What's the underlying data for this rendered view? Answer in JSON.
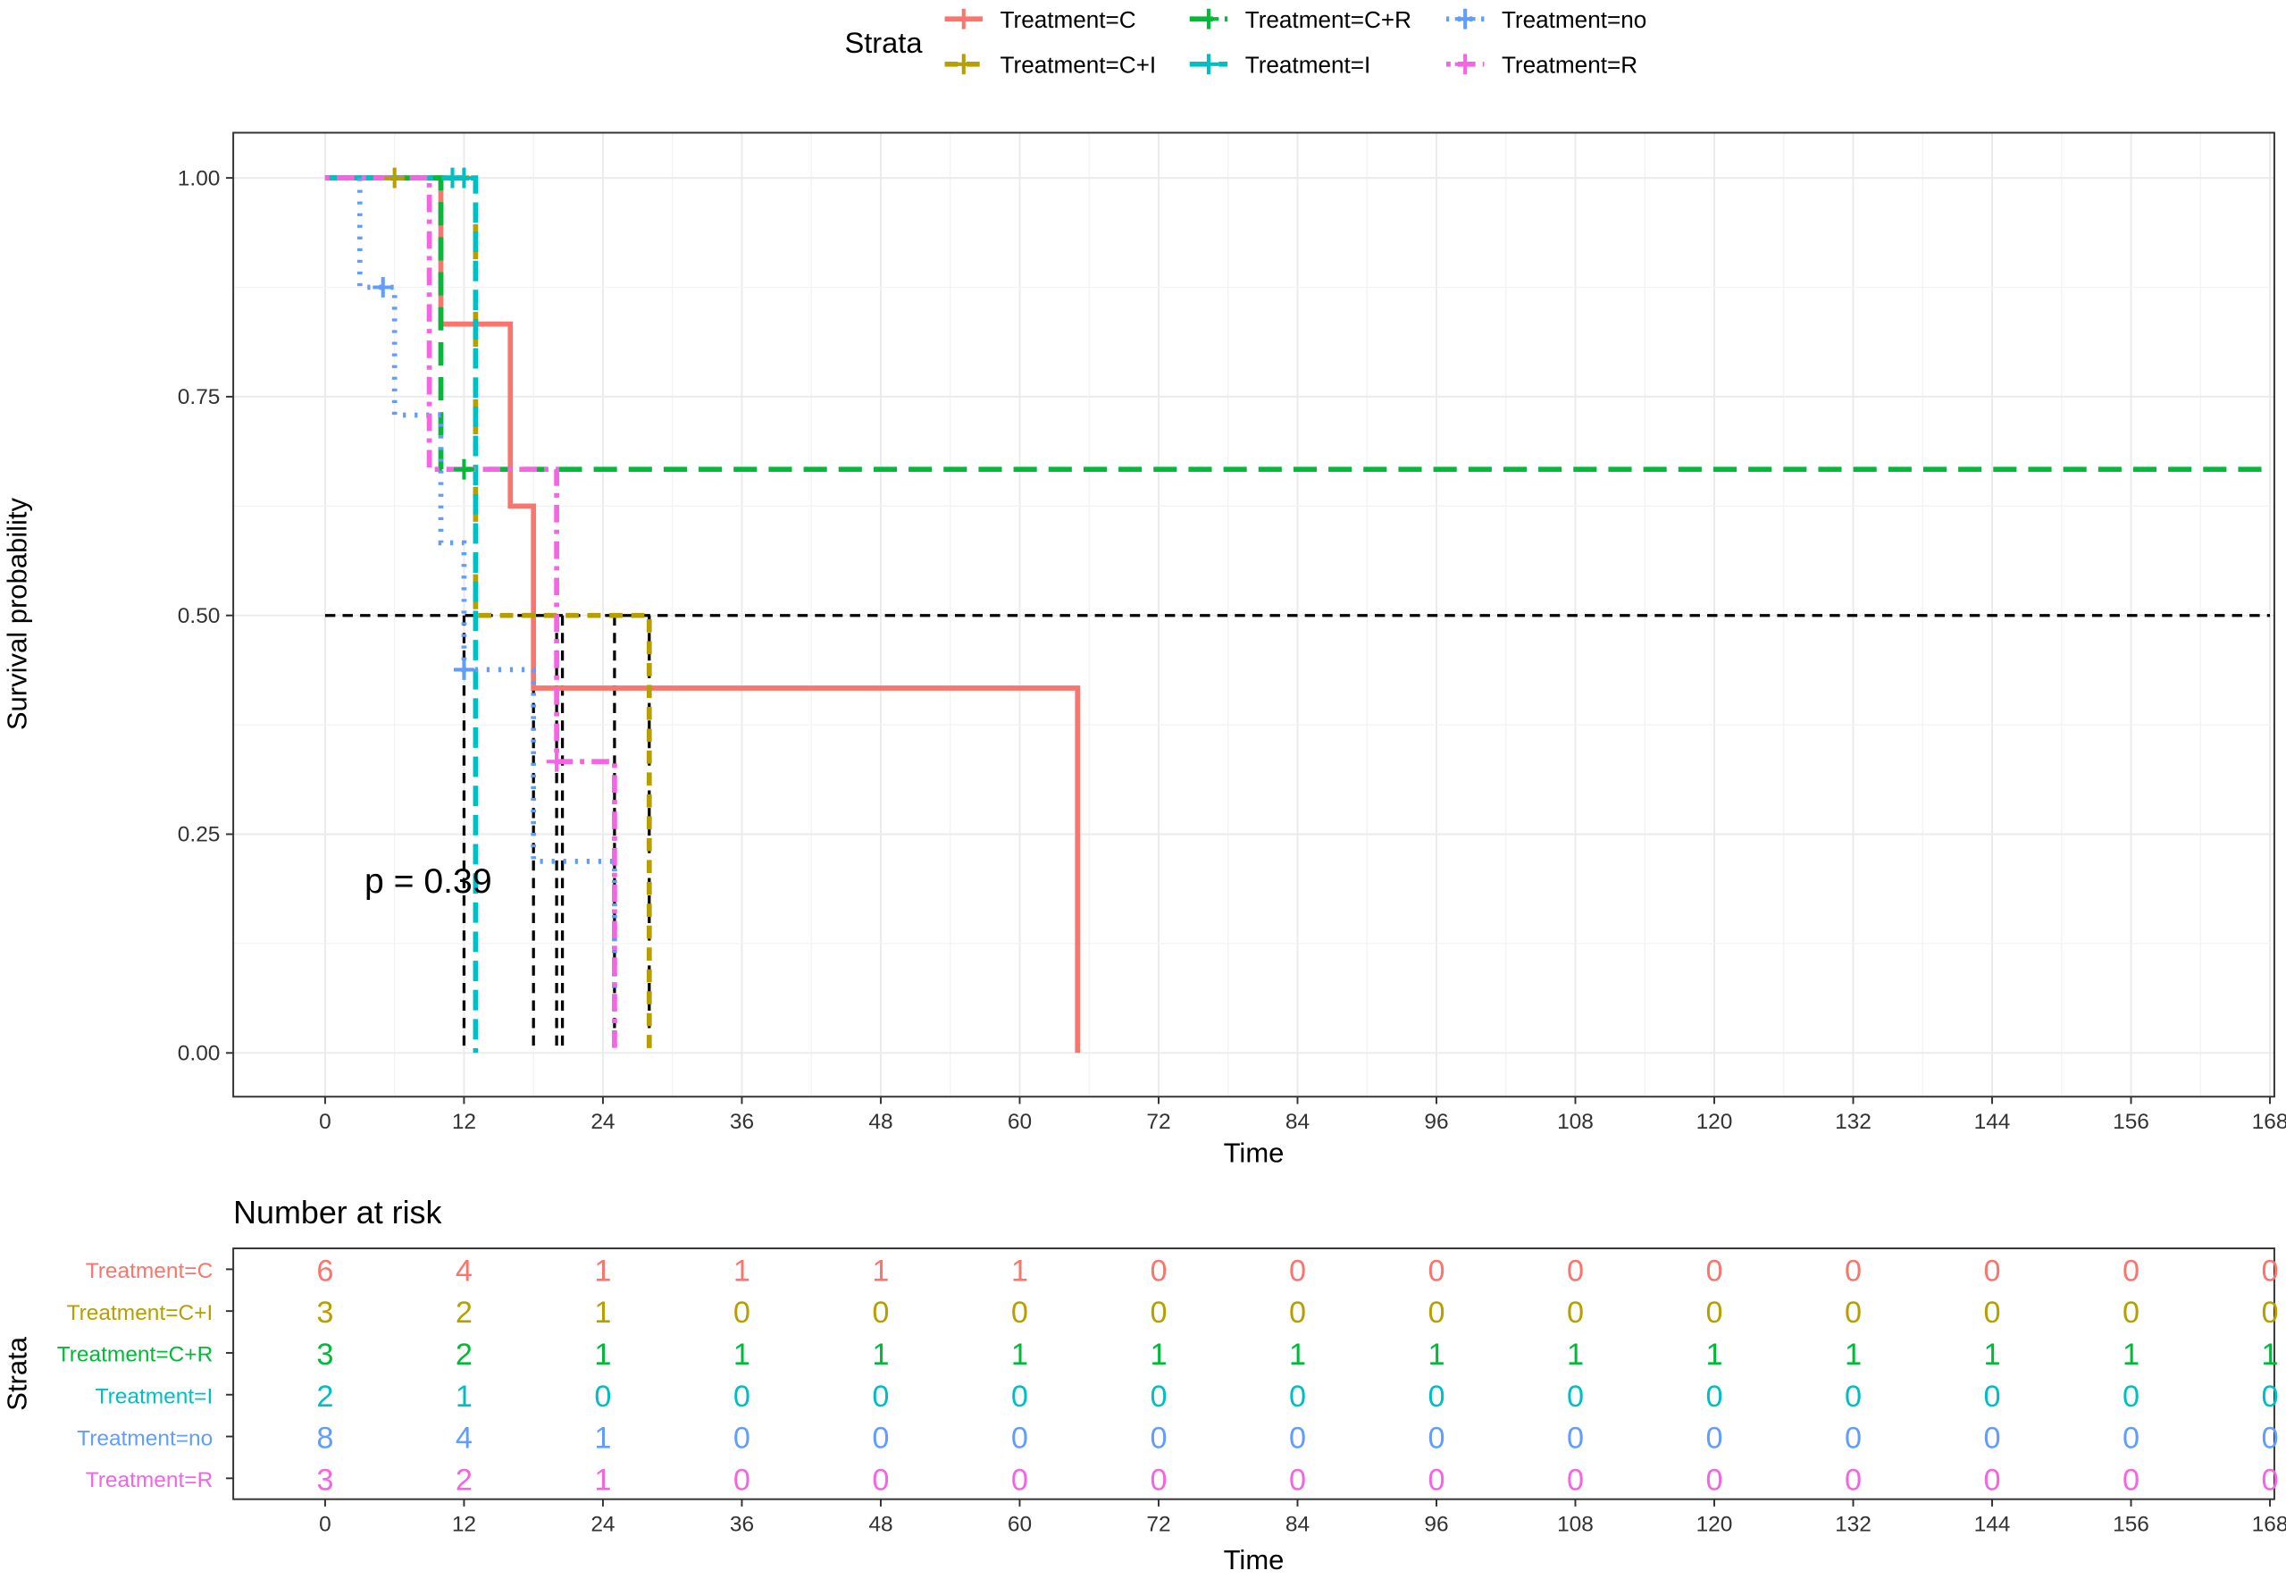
{
  "chart_data": [
    {
      "type": "line",
      "subtype": "kaplan-meier-step",
      "xlabel": "Time",
      "ylabel": "Survival probability",
      "xlim": [
        0,
        168
      ],
      "ylim": [
        0,
        1
      ],
      "x_ticks": [
        0,
        12,
        24,
        36,
        48,
        60,
        72,
        84,
        96,
        108,
        120,
        132,
        144,
        156,
        168
      ],
      "y_ticks": [
        0,
        0.25,
        0.5,
        0.75,
        1
      ],
      "y_tick_labels": [
        "0.00",
        "0.25",
        "0.50",
        "0.75",
        "1.00"
      ],
      "grid": true,
      "annotation": "p = 0.39",
      "legend": {
        "title": "Strata",
        "placement": "top"
      },
      "median_reference": {
        "y": 0.5,
        "x_end": 168,
        "drops": [
          12,
          18,
          20,
          20.5,
          25,
          28
        ]
      },
      "series": [
        {
          "name": "Treatment=C",
          "color": "#F8766D",
          "dash": "solid",
          "x": [
            0,
            10,
            16,
            18,
            65,
            65
          ],
          "y": [
            1,
            0.833,
            0.625,
            0.417,
            0.417,
            0
          ],
          "censor": []
        },
        {
          "name": "Treatment=C+I",
          "color": "#B79F00",
          "dash": "short",
          "x": [
            0,
            13,
            28,
            28
          ],
          "y": [
            1,
            0.5,
            0.5,
            0
          ],
          "censor": [
            [
              6,
              1
            ]
          ]
        },
        {
          "name": "Treatment=C+R",
          "color": "#00BA38",
          "dash": "long",
          "x": [
            0,
            10,
            168
          ],
          "y": [
            1,
            0.667,
            0.667
          ],
          "censor": [
            [
              12,
              0.667
            ]
          ]
        },
        {
          "name": "Treatment=I",
          "color": "#00BFC4",
          "dash": "longdash",
          "x": [
            0,
            13,
            13
          ],
          "y": [
            1,
            1,
            0
          ],
          "censor": [
            [
              11,
              1
            ],
            [
              12,
              1
            ]
          ]
        },
        {
          "name": "Treatment=no",
          "color": "#619CFF",
          "dash": "dot",
          "x": [
            0,
            3,
            6,
            10,
            12,
            18,
            25,
            25
          ],
          "y": [
            1,
            0.875,
            0.729,
            0.583,
            0.438,
            0.219,
            0.219,
            0
          ],
          "censor": [
            [
              5,
              0.875
            ],
            [
              12,
              0.438
            ]
          ]
        },
        {
          "name": "Treatment=R",
          "color": "#F564E3",
          "dash": "dotdash",
          "x": [
            0,
            9,
            20,
            25,
            25
          ],
          "y": [
            1,
            0.667,
            0.333,
            0.333,
            0
          ],
          "censor": [
            [
              20,
              0.333
            ]
          ]
        }
      ]
    },
    {
      "type": "table",
      "title": "Number at risk",
      "xlabel": "Time",
      "ylabel": "Strata",
      "time_points": [
        0,
        12,
        24,
        36,
        48,
        60,
        72,
        84,
        96,
        108,
        120,
        132,
        144,
        156,
        168
      ],
      "rows": [
        {
          "name": "Treatment=C",
          "color": "#F8766D",
          "values": [
            6,
            4,
            1,
            1,
            1,
            1,
            0,
            0,
            0,
            0,
            0,
            0,
            0,
            0,
            0
          ]
        },
        {
          "name": "Treatment=C+I",
          "color": "#B79F00",
          "values": [
            3,
            2,
            1,
            0,
            0,
            0,
            0,
            0,
            0,
            0,
            0,
            0,
            0,
            0,
            0
          ]
        },
        {
          "name": "Treatment=C+R",
          "color": "#00BA38",
          "values": [
            3,
            2,
            1,
            1,
            1,
            1,
            1,
            1,
            1,
            1,
            1,
            1,
            1,
            1,
            1
          ]
        },
        {
          "name": "Treatment=I",
          "color": "#00BFC4",
          "values": [
            2,
            1,
            0,
            0,
            0,
            0,
            0,
            0,
            0,
            0,
            0,
            0,
            0,
            0,
            0
          ]
        },
        {
          "name": "Treatment=no",
          "color": "#619CFF",
          "values": [
            8,
            4,
            1,
            0,
            0,
            0,
            0,
            0,
            0,
            0,
            0,
            0,
            0,
            0,
            0
          ]
        },
        {
          "name": "Treatment=R",
          "color": "#F564E3",
          "values": [
            3,
            2,
            1,
            0,
            0,
            0,
            0,
            0,
            0,
            0,
            0,
            0,
            0,
            0,
            0
          ]
        }
      ]
    }
  ]
}
